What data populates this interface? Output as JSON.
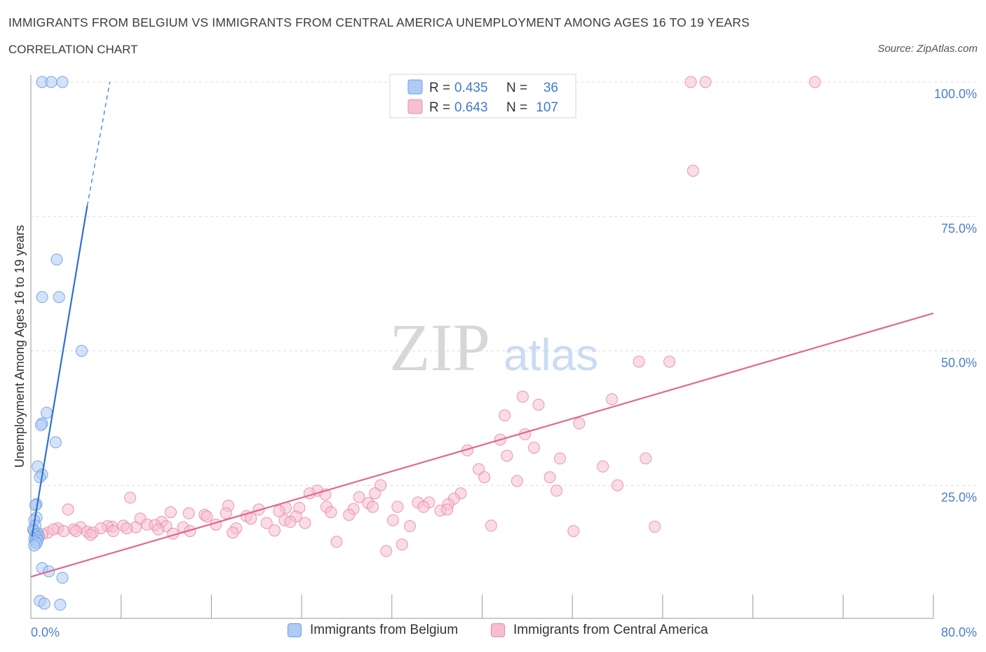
{
  "title": "IMMIGRANTS FROM BELGIUM VS IMMIGRANTS FROM CENTRAL AMERICA UNEMPLOYMENT AMONG AGES 16 TO 19 YEARS",
  "subtitle": "CORRELATION CHART",
  "source": "Source: ZipAtlas.com",
  "watermark": {
    "zip": "ZIP",
    "atlas": "atlas"
  },
  "colors": {
    "blue_fill": "#aecbf5",
    "blue_stroke": "#6d9fe0",
    "blue_line": "#2f6fd1",
    "pink_fill": "#f6bfd0",
    "pink_stroke": "#e88ba8",
    "pink_line": "#e0688f",
    "tick_label": "#4a7fcf",
    "grid": "#dcdcdc"
  },
  "legend_stats": [
    {
      "r_label": "R =",
      "r_value": "0.435",
      "n_label": "N =",
      "n_value": "36"
    },
    {
      "r_label": "R =",
      "r_value": "0.643",
      "n_label": "N =",
      "n_value": "107"
    }
  ],
  "chart_data": {
    "type": "scatter",
    "title": "IMMIGRANTS FROM BELGIUM VS IMMIGRANTS FROM CENTRAL AMERICA UNEMPLOYMENT AMONG AGES 16 TO 19 YEARS",
    "xlabel": "",
    "ylabel": "Unemployment Among Ages 16 to 19 years",
    "xlim": [
      0,
      80
    ],
    "ylim": [
      0,
      100
    ],
    "x_tick_labels": [
      {
        "value": 0,
        "label": "0.0%"
      },
      {
        "value": 80,
        "label": "80.0%"
      }
    ],
    "y_tick_labels": [
      {
        "value": 25,
        "label": "25.0%"
      },
      {
        "value": 50,
        "label": "50.0%"
      },
      {
        "value": 75,
        "label": "75.0%"
      },
      {
        "value": 100,
        "label": "100.0%"
      }
    ],
    "series": [
      {
        "name": "Immigrants from Belgium",
        "R": 0.435,
        "N": 36,
        "trend": {
          "x0": 0.1,
          "y0": 15.5,
          "x1": 5.0,
          "y1": 77.0,
          "dashed_to": {
            "x": 7.0,
            "y": 100.0
          }
        },
        "points": [
          {
            "x": 1.0,
            "y": 100.0
          },
          {
            "x": 1.8,
            "y": 100.0
          },
          {
            "x": 2.8,
            "y": 100.0
          },
          {
            "x": 2.3,
            "y": 67.0
          },
          {
            "x": 1.0,
            "y": 60.0
          },
          {
            "x": 2.5,
            "y": 60.0
          },
          {
            "x": 4.5,
            "y": 50.0
          },
          {
            "x": 1.4,
            "y": 38.5
          },
          {
            "x": 1.0,
            "y": 36.5
          },
          {
            "x": 0.9,
            "y": 36.2
          },
          {
            "x": 2.2,
            "y": 33.0
          },
          {
            "x": 0.6,
            "y": 28.5
          },
          {
            "x": 1.0,
            "y": 27.0
          },
          {
            "x": 0.8,
            "y": 26.5
          },
          {
            "x": 0.5,
            "y": 21.5
          },
          {
            "x": 0.4,
            "y": 21.3
          },
          {
            "x": 0.5,
            "y": 19.0
          },
          {
            "x": 0.3,
            "y": 18.5
          },
          {
            "x": 0.4,
            "y": 17.5
          },
          {
            "x": 0.2,
            "y": 16.8
          },
          {
            "x": 0.3,
            "y": 16.5
          },
          {
            "x": 0.6,
            "y": 16.0
          },
          {
            "x": 0.4,
            "y": 15.8
          },
          {
            "x": 0.7,
            "y": 15.5
          },
          {
            "x": 0.5,
            "y": 15.3
          },
          {
            "x": 0.3,
            "y": 15.0
          },
          {
            "x": 0.6,
            "y": 14.8
          },
          {
            "x": 0.4,
            "y": 14.5
          },
          {
            "x": 0.5,
            "y": 14.2
          },
          {
            "x": 0.3,
            "y": 13.8
          },
          {
            "x": 1.0,
            "y": 9.6
          },
          {
            "x": 1.6,
            "y": 9.0
          },
          {
            "x": 2.8,
            "y": 7.8
          },
          {
            "x": 0.8,
            "y": 3.5
          },
          {
            "x": 1.2,
            "y": 3.0
          },
          {
            "x": 2.6,
            "y": 2.8
          }
        ]
      },
      {
        "name": "Immigrants from Central America",
        "R": 0.643,
        "N": 107,
        "trend": {
          "x0": 0.0,
          "y0": 8.0,
          "x1": 80.0,
          "y1": 57.0
        },
        "points": [
          {
            "x": 58.5,
            "y": 100.0
          },
          {
            "x": 59.8,
            "y": 100.0
          },
          {
            "x": 69.5,
            "y": 100.0
          },
          {
            "x": 58.7,
            "y": 83.5
          },
          {
            "x": 53.9,
            "y": 48.0
          },
          {
            "x": 56.6,
            "y": 48.0
          },
          {
            "x": 43.6,
            "y": 41.5
          },
          {
            "x": 45.0,
            "y": 40.0
          },
          {
            "x": 51.5,
            "y": 41.0
          },
          {
            "x": 42.0,
            "y": 38.0
          },
          {
            "x": 48.6,
            "y": 36.5
          },
          {
            "x": 43.8,
            "y": 34.5
          },
          {
            "x": 41.6,
            "y": 33.5
          },
          {
            "x": 38.7,
            "y": 31.5
          },
          {
            "x": 44.6,
            "y": 32.0
          },
          {
            "x": 42.2,
            "y": 30.5
          },
          {
            "x": 46.9,
            "y": 30.0
          },
          {
            "x": 54.5,
            "y": 30.0
          },
          {
            "x": 50.7,
            "y": 28.5
          },
          {
            "x": 39.7,
            "y": 28.0
          },
          {
            "x": 40.2,
            "y": 26.5
          },
          {
            "x": 46.0,
            "y": 26.5
          },
          {
            "x": 43.1,
            "y": 25.8
          },
          {
            "x": 52.0,
            "y": 25.0
          },
          {
            "x": 46.6,
            "y": 24.0
          },
          {
            "x": 31.0,
            "y": 25.0
          },
          {
            "x": 25.4,
            "y": 24.0
          },
          {
            "x": 24.7,
            "y": 23.5
          },
          {
            "x": 38.1,
            "y": 23.5
          },
          {
            "x": 30.5,
            "y": 23.5
          },
          {
            "x": 26.1,
            "y": 23.3
          },
          {
            "x": 37.5,
            "y": 22.5
          },
          {
            "x": 29.1,
            "y": 22.8
          },
          {
            "x": 8.8,
            "y": 22.7
          },
          {
            "x": 37.0,
            "y": 21.5
          },
          {
            "x": 34.3,
            "y": 21.8
          },
          {
            "x": 29.9,
            "y": 21.7
          },
          {
            "x": 35.3,
            "y": 21.8
          },
          {
            "x": 34.8,
            "y": 21.0
          },
          {
            "x": 30.3,
            "y": 21.0
          },
          {
            "x": 36.3,
            "y": 20.3
          },
          {
            "x": 36.9,
            "y": 20.5
          },
          {
            "x": 32.5,
            "y": 21.0
          },
          {
            "x": 26.2,
            "y": 21.0
          },
          {
            "x": 22.6,
            "y": 20.8
          },
          {
            "x": 20.2,
            "y": 20.5
          },
          {
            "x": 23.8,
            "y": 20.8
          },
          {
            "x": 28.6,
            "y": 20.6
          },
          {
            "x": 22.0,
            "y": 20.2
          },
          {
            "x": 17.5,
            "y": 21.2
          },
          {
            "x": 3.3,
            "y": 20.5
          },
          {
            "x": 12.4,
            "y": 20.0
          },
          {
            "x": 17.3,
            "y": 19.8
          },
          {
            "x": 14.0,
            "y": 19.8
          },
          {
            "x": 15.4,
            "y": 19.5
          },
          {
            "x": 19.1,
            "y": 19.3
          },
          {
            "x": 15.6,
            "y": 19.2
          },
          {
            "x": 23.5,
            "y": 19.2
          },
          {
            "x": 28.2,
            "y": 19.5
          },
          {
            "x": 26.6,
            "y": 20.0
          },
          {
            "x": 19.5,
            "y": 18.8
          },
          {
            "x": 9.7,
            "y": 18.8
          },
          {
            "x": 22.5,
            "y": 18.5
          },
          {
            "x": 32.1,
            "y": 18.5
          },
          {
            "x": 23.0,
            "y": 18.2
          },
          {
            "x": 20.9,
            "y": 18.0
          },
          {
            "x": 24.3,
            "y": 18.0
          },
          {
            "x": 11.6,
            "y": 18.2
          },
          {
            "x": 10.3,
            "y": 17.7
          },
          {
            "x": 12.0,
            "y": 17.4
          },
          {
            "x": 11.0,
            "y": 17.6
          },
          {
            "x": 16.4,
            "y": 17.7
          },
          {
            "x": 13.5,
            "y": 17.2
          },
          {
            "x": 8.2,
            "y": 17.5
          },
          {
            "x": 7.2,
            "y": 17.3
          },
          {
            "x": 6.8,
            "y": 17.4
          },
          {
            "x": 6.2,
            "y": 17.0
          },
          {
            "x": 4.4,
            "y": 17.2
          },
          {
            "x": 2.4,
            "y": 17.0
          },
          {
            "x": 9.3,
            "y": 17.2
          },
          {
            "x": 33.6,
            "y": 17.4
          },
          {
            "x": 40.8,
            "y": 17.5
          },
          {
            "x": 55.3,
            "y": 17.3
          },
          {
            "x": 18.2,
            "y": 17.0
          },
          {
            "x": 11.3,
            "y": 16.8
          },
          {
            "x": 14.1,
            "y": 16.5
          },
          {
            "x": 3.8,
            "y": 16.8
          },
          {
            "x": 4.0,
            "y": 16.5
          },
          {
            "x": 5.0,
            "y": 16.4
          },
          {
            "x": 2.9,
            "y": 16.5
          },
          {
            "x": 1.5,
            "y": 16.2
          },
          {
            "x": 2.0,
            "y": 16.8
          },
          {
            "x": 5.5,
            "y": 16.2
          },
          {
            "x": 7.3,
            "y": 16.5
          },
          {
            "x": 8.5,
            "y": 17.0
          },
          {
            "x": 17.9,
            "y": 16.2
          },
          {
            "x": 21.6,
            "y": 16.6
          },
          {
            "x": 12.6,
            "y": 16.0
          },
          {
            "x": 48.1,
            "y": 16.5
          },
          {
            "x": 1.0,
            "y": 15.9
          },
          {
            "x": 0.6,
            "y": 15.5
          },
          {
            "x": 5.3,
            "y": 15.8
          },
          {
            "x": 27.1,
            "y": 14.5
          },
          {
            "x": 32.9,
            "y": 14.0
          },
          {
            "x": 31.5,
            "y": 12.8
          }
        ]
      }
    ]
  }
}
